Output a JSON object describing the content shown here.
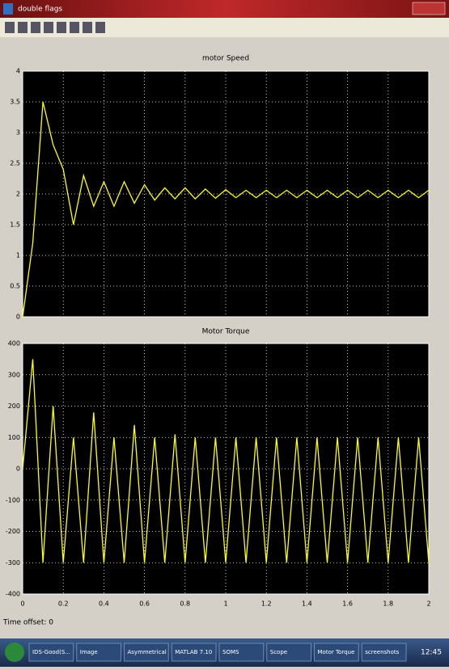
{
  "window": {
    "title": "double flags"
  },
  "chart_data": [
    {
      "type": "line",
      "title": "motor Speed",
      "color": "#ffff00",
      "grid": true,
      "show_xtick_labels": false,
      "xlim": [
        0,
        2
      ],
      "xticks": [
        0,
        0.2,
        0.4,
        0.6,
        0.8,
        1,
        1.2,
        1.4,
        1.6,
        1.8,
        2
      ],
      "ylim": [
        0,
        4
      ],
      "yticks": [
        0,
        0.5,
        1,
        1.5,
        2,
        2.5,
        3,
        3.5,
        4
      ],
      "x": [
        0,
        0.05,
        0.1,
        0.15,
        0.2,
        0.25,
        0.3,
        0.35,
        0.4,
        0.45,
        0.5,
        0.55,
        0.6,
        0.65,
        0.7,
        0.75,
        0.8,
        0.85,
        0.9,
        0.95,
        1,
        1.05,
        1.1,
        1.15,
        1.2,
        1.25,
        1.3,
        1.35,
        1.4,
        1.45,
        1.5,
        1.55,
        1.6,
        1.65,
        1.7,
        1.75,
        1.8,
        1.85,
        1.9,
        1.95,
        2
      ],
      "values": [
        0,
        1.2,
        3.5,
        2.8,
        2.4,
        1.5,
        2.3,
        1.8,
        2.2,
        1.8,
        2.2,
        1.85,
        2.15,
        1.9,
        2.1,
        1.92,
        2.1,
        1.92,
        2.08,
        1.93,
        2.07,
        1.94,
        2.06,
        1.94,
        2.06,
        1.94,
        2.06,
        1.94,
        2.06,
        1.94,
        2.06,
        1.94,
        2.06,
        1.94,
        2.06,
        1.94,
        2.06,
        1.94,
        2.06,
        1.94,
        2.06
      ]
    },
    {
      "type": "line",
      "title": "Motor Torque",
      "color": "#ffff00",
      "grid": true,
      "show_xtick_labels": true,
      "xlim": [
        0,
        2
      ],
      "xticks": [
        0,
        0.2,
        0.4,
        0.6,
        0.8,
        1,
        1.2,
        1.4,
        1.6,
        1.8,
        2
      ],
      "ylim": [
        -400,
        400
      ],
      "yticks": [
        -400,
        -300,
        -200,
        -100,
        0,
        100,
        200,
        300,
        400
      ],
      "x": [
        0,
        0.05,
        0.1,
        0.15,
        0.2,
        0.25,
        0.3,
        0.35,
        0.4,
        0.45,
        0.5,
        0.55,
        0.6,
        0.65,
        0.7,
        0.75,
        0.8,
        0.85,
        0.9,
        0.95,
        1,
        1.05,
        1.1,
        1.15,
        1.2,
        1.25,
        1.3,
        1.35,
        1.4,
        1.45,
        1.5,
        1.55,
        1.6,
        1.65,
        1.7,
        1.75,
        1.8,
        1.85,
        1.9,
        1.95,
        2
      ],
      "values": [
        0,
        350,
        -300,
        200,
        -300,
        100,
        -300,
        180,
        -300,
        100,
        -300,
        140,
        -300,
        100,
        -300,
        110,
        -300,
        100,
        -300,
        100,
        -300,
        100,
        -300,
        100,
        -300,
        100,
        -300,
        100,
        -300,
        100,
        -300,
        100,
        -300,
        100,
        -300,
        100,
        -300,
        100,
        -300,
        100,
        -300
      ]
    }
  ],
  "status": {
    "time_offset": "Time offset: 0"
  },
  "taskbar": {
    "items": [
      "IDS-Good(S...",
      "Image",
      "Asymmetrical",
      "MATLAB 7.10",
      "SOMS",
      "Scope",
      "Motor Torque",
      "screenshots"
    ],
    "clock": "12:45"
  }
}
